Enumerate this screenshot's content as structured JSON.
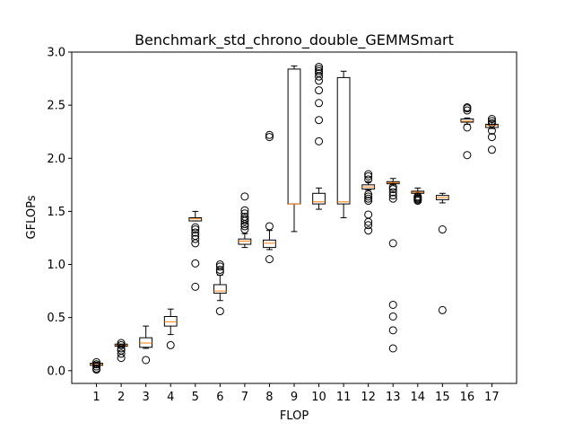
{
  "chart_data": {
    "type": "box",
    "title": "Benchmark_std_chrono_double_GEMMSmart",
    "xlabel": "FLOP",
    "ylabel": "GFLOPs",
    "ylim": [
      -0.12,
      3.0
    ],
    "yticks": [
      "0.0",
      "0.5",
      "1.0",
      "1.5",
      "2.0",
      "2.5",
      "3.0"
    ],
    "grid": false,
    "categories": [
      "1",
      "2",
      "3",
      "4",
      "5",
      "6",
      "7",
      "8",
      "9",
      "10",
      "11",
      "12",
      "13",
      "14",
      "15",
      "16",
      "17"
    ],
    "boxes": [
      {
        "q1": 0.05,
        "median": 0.06,
        "q3": 0.07,
        "whislo": 0.03,
        "whishi": 0.08,
        "fliers": [
          0.01,
          0.02,
          0.04,
          0.06,
          0.08
        ]
      },
      {
        "q1": 0.23,
        "median": 0.24,
        "q3": 0.25,
        "whislo": 0.22,
        "whishi": 0.25,
        "fliers": [
          0.12,
          0.16,
          0.19,
          0.21,
          0.24,
          0.26
        ]
      },
      {
        "q1": 0.22,
        "median": 0.26,
        "q3": 0.31,
        "whislo": 0.21,
        "whishi": 0.42,
        "fliers": [
          0.1
        ]
      },
      {
        "q1": 0.42,
        "median": 0.46,
        "q3": 0.51,
        "whislo": 0.34,
        "whishi": 0.58,
        "fliers": [
          0.24
        ]
      },
      {
        "q1": 1.41,
        "median": 1.43,
        "q3": 1.44,
        "whislo": 1.41,
        "whishi": 1.5,
        "fliers": [
          0.79,
          1.01,
          1.2,
          1.24,
          1.27,
          1.3,
          1.33,
          1.35
        ]
      },
      {
        "q1": 0.73,
        "median": 0.75,
        "q3": 0.81,
        "whislo": 0.66,
        "whishi": 0.9,
        "fliers": [
          0.56,
          0.93,
          0.95,
          0.98,
          1.0
        ]
      },
      {
        "q1": 1.19,
        "median": 1.22,
        "q3": 1.24,
        "whislo": 1.16,
        "whishi": 1.29,
        "fliers": [
          1.33,
          1.36,
          1.38,
          1.41,
          1.43,
          1.45,
          1.48,
          1.51,
          1.64
        ]
      },
      {
        "q1": 1.16,
        "median": 1.2,
        "q3": 1.23,
        "whislo": 1.14,
        "whishi": 1.32,
        "fliers": [
          1.05,
          1.36,
          2.2,
          2.22
        ]
      },
      {
        "q1": 1.57,
        "median": 1.57,
        "q3": 2.84,
        "whislo": 1.31,
        "whishi": 2.87,
        "fliers": []
      },
      {
        "q1": 1.57,
        "median": 1.59,
        "q3": 1.67,
        "whislo": 1.52,
        "whishi": 1.72,
        "fliers": [
          2.16,
          2.36,
          2.52,
          2.64,
          2.73,
          2.77,
          2.8,
          2.82,
          2.84,
          2.86
        ]
      },
      {
        "q1": 1.57,
        "median": 1.59,
        "q3": 2.76,
        "whislo": 1.44,
        "whishi": 2.82,
        "fliers": []
      },
      {
        "q1": 1.71,
        "median": 1.73,
        "q3": 1.75,
        "whislo": 1.7,
        "whishi": 1.78,
        "fliers": [
          1.32,
          1.37,
          1.4,
          1.47,
          1.6,
          1.62,
          1.64,
          1.66,
          1.8,
          1.83,
          1.85
        ]
      },
      {
        "q1": 1.76,
        "median": 1.77,
        "q3": 1.78,
        "whislo": 1.75,
        "whishi": 1.81,
        "fliers": [
          0.21,
          0.38,
          0.51,
          0.62,
          1.2,
          1.62,
          1.65,
          1.68,
          1.71,
          1.73
        ]
      },
      {
        "q1": 1.67,
        "median": 1.68,
        "q3": 1.69,
        "whislo": 1.65,
        "whishi": 1.72,
        "fliers": [
          1.6,
          1.61,
          1.62,
          1.63,
          1.64
        ]
      },
      {
        "q1": 1.61,
        "median": 1.63,
        "q3": 1.65,
        "whislo": 1.58,
        "whishi": 1.67,
        "fliers": [
          0.57,
          1.33
        ]
      },
      {
        "q1": 2.34,
        "median": 2.35,
        "q3": 2.37,
        "whislo": 2.32,
        "whishi": 2.38,
        "fliers": [
          2.03,
          2.29,
          2.45,
          2.47,
          2.48
        ]
      },
      {
        "q1": 2.29,
        "median": 2.31,
        "q3": 2.32,
        "whislo": 2.28,
        "whishi": 2.35,
        "fliers": [
          2.08,
          2.2,
          2.26,
          2.33,
          2.35,
          2.37
        ]
      }
    ]
  }
}
